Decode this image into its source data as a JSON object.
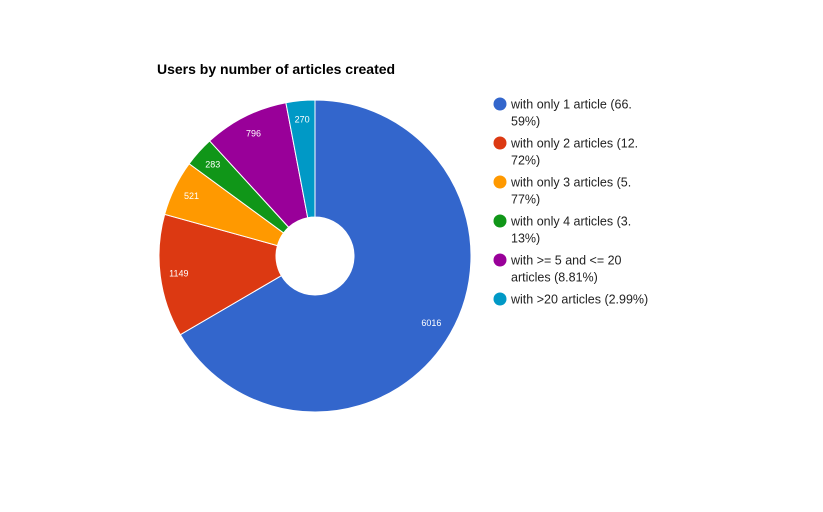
{
  "chart_data": {
    "type": "pie",
    "donut": true,
    "title": "Users by number of articles created",
    "legend_position": "right",
    "slices": [
      {
        "label": "with only 1 article",
        "value": 6016,
        "percent": 66.59,
        "color": "#3366cc",
        "legend_lines": [
          "with only 1 article (66.",
          "59%)"
        ]
      },
      {
        "label": "with only 2 articles",
        "value": 1149,
        "percent": 12.72,
        "color": "#dc3912",
        "legend_lines": [
          "with only 2 articles (12.",
          "72%)"
        ]
      },
      {
        "label": "with only 3 articles",
        "value": 521,
        "percent": 5.77,
        "color": "#ff9900",
        "legend_lines": [
          "with only 3 articles (5.",
          "77%)"
        ]
      },
      {
        "label": "with only 4 articles",
        "value": 283,
        "percent": 3.13,
        "color": "#109618",
        "legend_lines": [
          "with only 4 articles (3.",
          "13%)"
        ]
      },
      {
        "label": "with >= 5 and <= 20 articles",
        "value": 796,
        "percent": 8.81,
        "color": "#990099",
        "legend_lines": [
          "with >= 5 and <= 20",
          "articles (8.81%)"
        ]
      },
      {
        "label": "with >20 articles",
        "value": 270,
        "percent": 2.99,
        "color": "#0099c6",
        "legend_lines": [
          "with >20 articles (2.99%)"
        ]
      }
    ]
  }
}
